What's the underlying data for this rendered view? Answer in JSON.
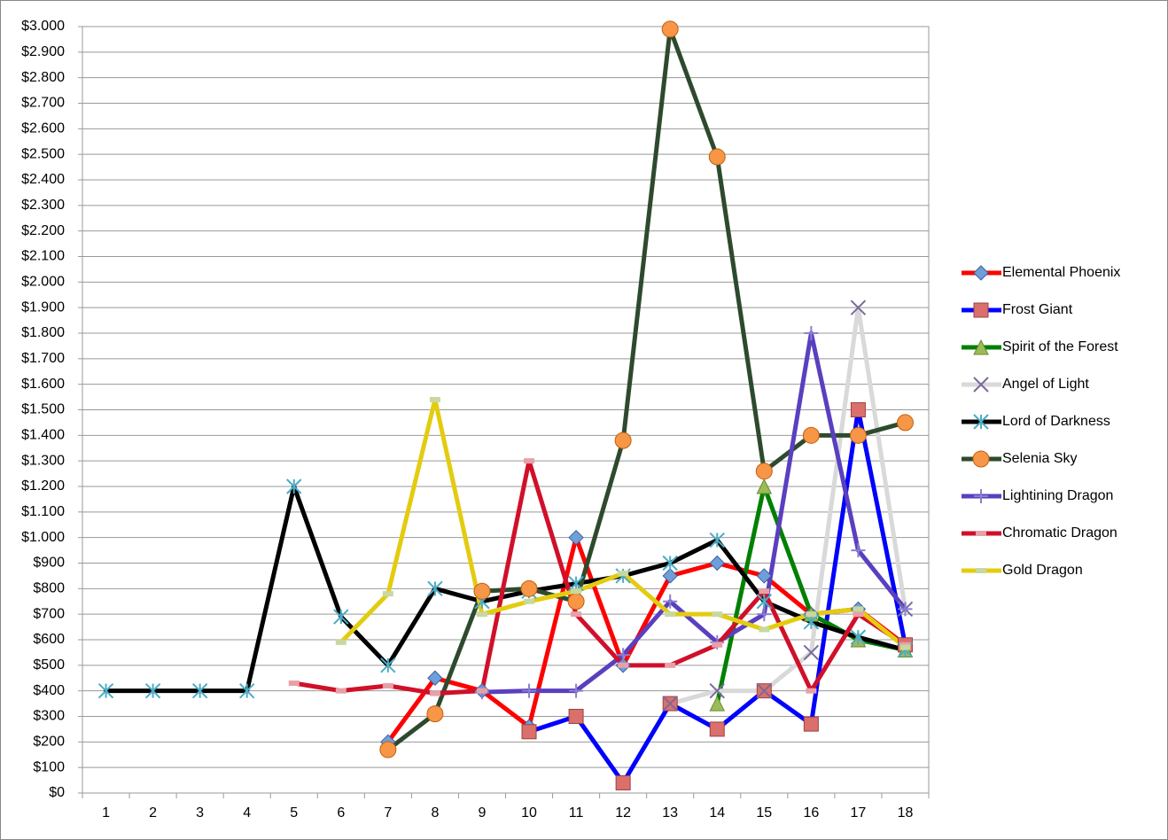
{
  "chart_data": {
    "type": "line",
    "categories": [
      "1",
      "2",
      "3",
      "4",
      "5",
      "6",
      "7",
      "8",
      "9",
      "10",
      "11",
      "12",
      "13",
      "14",
      "15",
      "16",
      "17",
      "18"
    ],
    "ylim": [
      0,
      3000
    ],
    "yticks": [
      {
        "value": 0,
        "label": "$0"
      },
      {
        "value": 100,
        "label": "$100"
      },
      {
        "value": 200,
        "label": "$200"
      },
      {
        "value": 300,
        "label": "$300"
      },
      {
        "value": 400,
        "label": "$400"
      },
      {
        "value": 500,
        "label": "$500"
      },
      {
        "value": 600,
        "label": "$600"
      },
      {
        "value": 700,
        "label": "$700"
      },
      {
        "value": 800,
        "label": "$800"
      },
      {
        "value": 900,
        "label": "$900"
      },
      {
        "value": 1000,
        "label": "$1.000"
      },
      {
        "value": 1100,
        "label": "$1.100"
      },
      {
        "value": 1200,
        "label": "$1.200"
      },
      {
        "value": 1300,
        "label": "$1.300"
      },
      {
        "value": 1400,
        "label": "$1.400"
      },
      {
        "value": 1500,
        "label": "$1.500"
      },
      {
        "value": 1600,
        "label": "$1.600"
      },
      {
        "value": 1700,
        "label": "$1.700"
      },
      {
        "value": 1800,
        "label": "$1.800"
      },
      {
        "value": 1900,
        "label": "$1.900"
      },
      {
        "value": 2000,
        "label": "$2.000"
      },
      {
        "value": 2100,
        "label": "$2.100"
      },
      {
        "value": 2200,
        "label": "$2.200"
      },
      {
        "value": 2300,
        "label": "$2.300"
      },
      {
        "value": 2400,
        "label": "$2.400"
      },
      {
        "value": 2500,
        "label": "$2.500"
      },
      {
        "value": 2600,
        "label": "$2.600"
      },
      {
        "value": 2700,
        "label": "$2.700"
      },
      {
        "value": 2800,
        "label": "$2.800"
      },
      {
        "value": 2900,
        "label": "$2.900"
      },
      {
        "value": 3000,
        "label": "$3.000"
      }
    ],
    "grid": true,
    "legend": "right",
    "series": [
      {
        "name": "Elemental Phoenix",
        "color": "#ff0000",
        "marker": "diamond",
        "marker_color": "#6f9fd8",
        "values": [
          null,
          null,
          null,
          null,
          null,
          null,
          200,
          450,
          400,
          260,
          1000,
          500,
          850,
          900,
          850,
          700,
          720,
          580
        ]
      },
      {
        "name": "Frost Giant",
        "color": "#0000ff",
        "marker": "square",
        "marker_color": "#d9706b",
        "values": [
          null,
          null,
          null,
          null,
          null,
          null,
          null,
          null,
          null,
          240,
          300,
          40,
          350,
          250,
          400,
          270,
          1500,
          580
        ]
      },
      {
        "name": "Spirit of the Forest",
        "color": "#008000",
        "marker": "triangle",
        "marker_color": "#9bbb59",
        "values": [
          null,
          null,
          null,
          null,
          null,
          null,
          null,
          null,
          null,
          null,
          null,
          null,
          null,
          350,
          1200,
          700,
          600,
          560
        ]
      },
      {
        "name": "Angel of Light",
        "color": "#d9d9d9",
        "marker": "x",
        "marker_color": "#7a6a9a",
        "values": [
          null,
          null,
          null,
          null,
          null,
          null,
          null,
          null,
          null,
          null,
          null,
          null,
          350,
          400,
          400,
          550,
          1900,
          720
        ]
      },
      {
        "name": "Lord of Darkness",
        "color": "#000000",
        "marker": "star",
        "marker_color": "#4bacc6",
        "values": [
          400,
          400,
          400,
          400,
          1200,
          690,
          500,
          800,
          750,
          790,
          820,
          850,
          900,
          990,
          750,
          670,
          610,
          560
        ]
      },
      {
        "name": "Selenia Sky",
        "color": "#2e4a2e",
        "marker": "circle",
        "marker_color": "#f79646",
        "values": [
          null,
          null,
          null,
          null,
          null,
          null,
          170,
          310,
          790,
          800,
          750,
          1380,
          2990,
          2490,
          1260,
          1400,
          1400,
          1450
        ]
      },
      {
        "name": "Lightining Dragon",
        "color": "#5a3fbf",
        "marker": "plus",
        "marker_color": "#8a7fd0",
        "values": [
          null,
          null,
          null,
          null,
          null,
          null,
          null,
          null,
          395,
          400,
          400,
          540,
          750,
          590,
          700,
          1800,
          950,
          720
        ]
      },
      {
        "name": "Chromatic Dragon",
        "color": "#d0102a",
        "marker": "dash",
        "marker_color": "#e8a0a8",
        "values": [
          null,
          null,
          null,
          null,
          430,
          400,
          420,
          390,
          400,
          1300,
          700,
          500,
          500,
          580,
          790,
          400,
          700,
          580
        ]
      },
      {
        "name": "Gold Dragon",
        "color": "#e3cc10",
        "marker": "dash",
        "marker_color": "#c8d8a0",
        "values": [
          null,
          null,
          null,
          null,
          null,
          590,
          780,
          1540,
          700,
          750,
          790,
          860,
          700,
          700,
          640,
          700,
          720,
          570
        ]
      }
    ]
  }
}
